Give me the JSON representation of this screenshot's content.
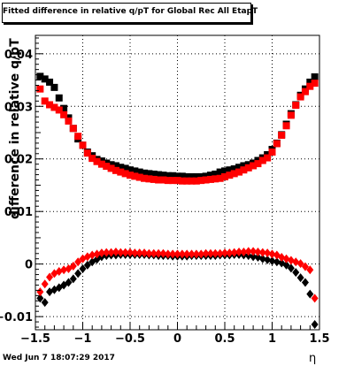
{
  "title": "Fitted difference in relative q/pT for Global Rec All EtapT",
  "footer": "Wed Jun  7 18:07:29 2017",
  "chart_data": {
    "type": "scatter",
    "title": "Fitted difference in relative q/pT for Global Rec All EtapT",
    "xlabel": "η",
    "ylabel": "difference in relative q/pT",
    "xlim": [
      -1.5,
      1.5
    ],
    "ylim": [
      -0.0125,
      0.0435
    ],
    "grid": true,
    "xticks": [
      "−1.5",
      "−1",
      "−0.5",
      "0",
      "0.5",
      "1",
      "1.5"
    ],
    "yticks": [
      "−0.01",
      "0",
      "0.01",
      "0.02",
      "0.03",
      "0.04"
    ],
    "x": [
      -1.45,
      -1.4,
      -1.35,
      -1.3,
      -1.25,
      -1.2,
      -1.15,
      -1.1,
      -1.05,
      -1.0,
      -0.95,
      -0.9,
      -0.85,
      -0.8,
      -0.75,
      -0.7,
      -0.65,
      -0.6,
      -0.55,
      -0.5,
      -0.45,
      -0.4,
      -0.35,
      -0.3,
      -0.25,
      -0.2,
      -0.15,
      -0.1,
      -0.05,
      0.0,
      0.05,
      0.1,
      0.15,
      0.2,
      0.25,
      0.3,
      0.35,
      0.4,
      0.45,
      0.5,
      0.55,
      0.6,
      0.65,
      0.7,
      0.75,
      0.8,
      0.85,
      0.9,
      0.95,
      1.0,
      1.05,
      1.1,
      1.15,
      1.2,
      1.25,
      1.3,
      1.35,
      1.4,
      1.45
    ],
    "series": [
      {
        "marker": "square",
        "color": "#000000",
        "values": [
          0.0357,
          0.0352,
          0.0346,
          0.0336,
          0.0316,
          0.0296,
          0.0278,
          0.0258,
          0.0238,
          0.0226,
          0.0213,
          0.0206,
          0.0199,
          0.0196,
          0.0192,
          0.0189,
          0.0187,
          0.0184,
          0.0182,
          0.0179,
          0.0177,
          0.0175,
          0.0173,
          0.0172,
          0.0171,
          0.017,
          0.0169,
          0.0168,
          0.0168,
          0.0167,
          0.0167,
          0.0166,
          0.0166,
          0.0166,
          0.0166,
          0.0167,
          0.0169,
          0.0171,
          0.0175,
          0.0177,
          0.0179,
          0.0181,
          0.0184,
          0.0187,
          0.0189,
          0.0192,
          0.0197,
          0.0202,
          0.0208,
          0.0218,
          0.023,
          0.0246,
          0.0266,
          0.0286,
          0.0303,
          0.0321,
          0.0333,
          0.0346,
          0.0356
        ]
      },
      {
        "marker": "square",
        "color": "#ff0000",
        "values": [
          0.0333,
          0.031,
          0.0303,
          0.0298,
          0.0293,
          0.0284,
          0.0272,
          0.0258,
          0.0243,
          0.0226,
          0.0211,
          0.0201,
          0.0195,
          0.019,
          0.0186,
          0.0182,
          0.0178,
          0.0175,
          0.0172,
          0.0169,
          0.0167,
          0.0165,
          0.0163,
          0.0162,
          0.0161,
          0.016,
          0.016,
          0.0159,
          0.0159,
          0.0159,
          0.0158,
          0.0158,
          0.0158,
          0.0158,
          0.0159,
          0.016,
          0.0161,
          0.0162,
          0.0163,
          0.0166,
          0.0169,
          0.0172,
          0.0175,
          0.0179,
          0.0183,
          0.0187,
          0.0191,
          0.0197,
          0.0202,
          0.0213,
          0.0229,
          0.0245,
          0.0263,
          0.0283,
          0.0302,
          0.0318,
          0.0328,
          0.0338,
          0.0344
        ]
      },
      {
        "marker": "diamond",
        "color": "#000000",
        "values": [
          -0.0065,
          -0.0073,
          -0.0053,
          -0.0049,
          -0.0045,
          -0.004,
          -0.0035,
          -0.0028,
          -0.0018,
          -0.0009,
          -0.0002,
          0.0004,
          0.0009,
          0.0014,
          0.0016,
          0.0017,
          0.0017,
          0.0018,
          0.0018,
          0.0018,
          0.0018,
          0.0018,
          0.0018,
          0.0017,
          0.0017,
          0.0016,
          0.0016,
          0.0016,
          0.0015,
          0.0015,
          0.0015,
          0.0015,
          0.0016,
          0.0016,
          0.0016,
          0.0016,
          0.0016,
          0.0016,
          0.0017,
          0.0017,
          0.0017,
          0.0018,
          0.0018,
          0.0017,
          0.0016,
          0.0014,
          0.0013,
          0.001,
          0.0008,
          0.0006,
          0.0004,
          0.0002,
          -0.0002,
          -0.0008,
          -0.0016,
          -0.0026,
          -0.0035,
          -0.0057,
          -0.0115
        ]
      },
      {
        "marker": "diamond",
        "color": "#ff0000",
        "values": [
          -0.0053,
          -0.0038,
          -0.0025,
          -0.0018,
          -0.0014,
          -0.0011,
          -0.0009,
          -0.0004,
          0.0004,
          0.001,
          0.0014,
          0.0017,
          0.0019,
          0.0021,
          0.0022,
          0.0022,
          0.0023,
          0.0022,
          0.0022,
          0.0022,
          0.0021,
          0.0021,
          0.0021,
          0.002,
          0.002,
          0.002,
          0.002,
          0.0019,
          0.0019,
          0.0019,
          0.0019,
          0.0019,
          0.0019,
          0.0019,
          0.0019,
          0.002,
          0.002,
          0.002,
          0.002,
          0.0021,
          0.0021,
          0.0022,
          0.0023,
          0.0023,
          0.0024,
          0.0024,
          0.0023,
          0.0022,
          0.0021,
          0.0019,
          0.0017,
          0.0013,
          0.001,
          0.0007,
          0.0004,
          0.0001,
          -0.0005,
          -0.0011,
          -0.0065
        ]
      }
    ]
  }
}
